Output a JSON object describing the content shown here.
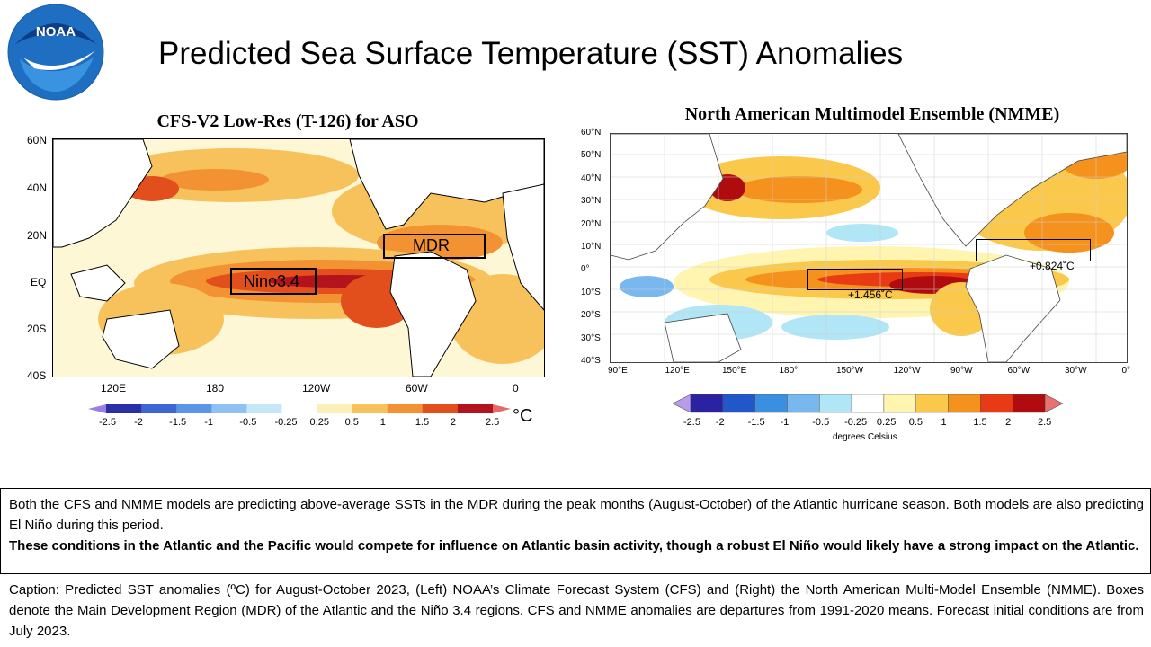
{
  "header": {
    "logo_text": "NOAA",
    "title": "Predicted Sea Surface Temperature (SST) Anomalies"
  },
  "left_map": {
    "title": "CFS-V2 Low-Res (T-126) for ASO",
    "lat_labels": [
      "60N",
      "40N",
      "20N",
      "EQ",
      "20S",
      "40S"
    ],
    "lon_labels": [
      "120E",
      "180",
      "120W",
      "60W",
      "0"
    ],
    "boxes": {
      "nino": "Nino3.4",
      "mdr": "MDR"
    },
    "colorbar": {
      "ticks": [
        "-2.5",
        "-2",
        "-1.5",
        "-1",
        "-0.5",
        "-0.25",
        "0.25",
        "0.5",
        "1",
        "1.5",
        "2",
        "2.5"
      ],
      "unit": "°C",
      "colors": [
        "#2b2fa6",
        "#3b66d3",
        "#5b95e6",
        "#8fc2f3",
        "#c5e7f8",
        "#ffffff",
        "#fbf1b8",
        "#f7c25c",
        "#f29232",
        "#e24f1d",
        "#b3131c"
      ]
    }
  },
  "right_map": {
    "title": "North American Multimodel Ensemble (NMME)",
    "lat_labels": [
      "60°N",
      "50°N",
      "40°N",
      "30°N",
      "20°N",
      "10°N",
      "0°",
      "10°S",
      "20°S",
      "30°S",
      "40°S"
    ],
    "lon_labels": [
      "90°E",
      "120°E",
      "150°E",
      "180°",
      "150°W",
      "120°W",
      "90°W",
      "60°W",
      "30°W",
      "0°"
    ],
    "nino_value": "+1.456˚C",
    "mdr_value": "+0.824˚C",
    "colorbar": {
      "ticks": [
        "-2.5",
        "-2",
        "-1.5",
        "-1",
        "-0.5",
        "-0.25",
        "0.25",
        "0.5",
        "1",
        "1.5",
        "2",
        "2.5"
      ],
      "caption": "degrees Celsius",
      "colors": [
        "#2a22a0",
        "#2157c8",
        "#3a8fe0",
        "#78b8ee",
        "#b0e6f6",
        "#ffffff",
        "#fff5b0",
        "#fac84a",
        "#f5921e",
        "#e83a14",
        "#b00c10"
      ]
    }
  },
  "summary": {
    "text": "Both the CFS and NMME models are predicting above-average SSTs in the MDR during the peak months (August-October) of the Atlantic hurricane season. Both models are also predicting El Niño during this period.",
    "bold_text": "These conditions in the Atlantic and the Pacific would compete for influence on Atlantic basin activity, though a robust El Niño would likely have a strong impact on the Atlantic."
  },
  "caption": {
    "text": "Caption: Predicted SST anomalies (ºC) for August-October 2023, (Left) NOAA’s Climate Forecast System (CFS) and (Right) the North American Multi-Model Ensemble (NMME). Boxes denote the Main Development Region (MDR) of the Atlantic and the Niño 3.4 regions. CFS and NMME anomalies are departures from 1991-2020 means.  Forecast initial conditions are from July 2023."
  }
}
